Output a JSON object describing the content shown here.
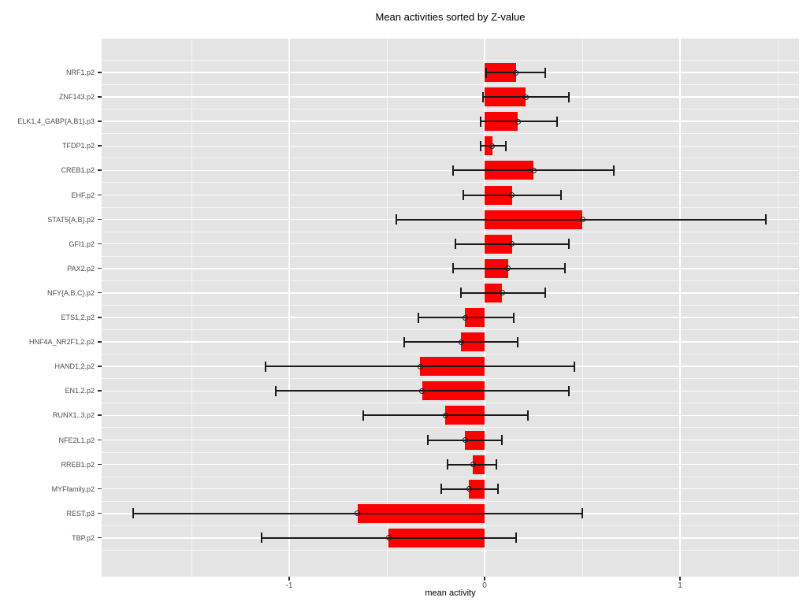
{
  "chart_data": {
    "type": "bar",
    "orientation": "horizontal",
    "title": "Mean activities sorted by Z-value",
    "xlabel": "mean activity",
    "ylabel": "",
    "xlim": [
      -1.96,
      1.61
    ],
    "x_ticks": [
      -1,
      0,
      1
    ],
    "x_tick_labels": [
      "-1",
      "0",
      "1"
    ],
    "x_minor_ticks": [
      -1.5,
      -0.5,
      0.5,
      1.5
    ],
    "grid": true,
    "legend": false,
    "bar_color": "#FF0000",
    "panel_background": "#E4E4E4",
    "error_bar_color": "#1a1a1a",
    "categories": [
      "NRF1.p2",
      "ZNF143.p2",
      "ELK1,4_GABP{A,B1}.p3",
      "TFDP1.p2",
      "CREB1.p2",
      "EHF.p2",
      "STAT5{A,B}.p2",
      "GFI1.p2",
      "PAX2.p2",
      "NFY{A,B,C}.p2",
      "ETS1,2.p2",
      "HNF4A_NR2F1,2.p2",
      "HAND1,2.p2",
      "EN1,2.p2",
      "RUNX1..3.p2",
      "NFE2L1.p2",
      "RREB1.p2",
      "MYFfamily.p2",
      "REST.p3",
      "TBP.p2"
    ],
    "rows": [
      {
        "label": "NRF1.p2",
        "mean": 0.16,
        "err_low": 0.01,
        "err_high": 0.31
      },
      {
        "label": "ZNF143.p2",
        "mean": 0.21,
        "err_low": -0.01,
        "err_high": 0.43
      },
      {
        "label": "ELK1,4_GABP{A,B1}.p3",
        "mean": 0.17,
        "err_low": -0.02,
        "err_high": 0.37
      },
      {
        "label": "TFDP1.p2",
        "mean": 0.04,
        "err_low": -0.02,
        "err_high": 0.11
      },
      {
        "label": "CREB1.p2",
        "mean": 0.25,
        "err_low": -0.16,
        "err_high": 0.66
      },
      {
        "label": "EHF.p2",
        "mean": 0.14,
        "err_low": -0.11,
        "err_high": 0.39
      },
      {
        "label": "STAT5{A,B}.p2",
        "mean": 0.5,
        "err_low": -0.45,
        "err_high": 1.44
      },
      {
        "label": "GFI1.p2",
        "mean": 0.14,
        "err_low": -0.15,
        "err_high": 0.43
      },
      {
        "label": "PAX2.p2",
        "mean": 0.12,
        "err_low": -0.16,
        "err_high": 0.41
      },
      {
        "label": "NFY{A,B,C}.p2",
        "mean": 0.09,
        "err_low": -0.12,
        "err_high": 0.31
      },
      {
        "label": "ETS1,2.p2",
        "mean": -0.1,
        "err_low": -0.34,
        "err_high": 0.15
      },
      {
        "label": "HNF4A_NR2F1,2.p2",
        "mean": -0.12,
        "err_low": -0.41,
        "err_high": 0.17
      },
      {
        "label": "HAND1,2.p2",
        "mean": -0.33,
        "err_low": -1.12,
        "err_high": 0.46
      },
      {
        "label": "EN1,2.p2",
        "mean": -0.32,
        "err_low": -1.07,
        "err_high": 0.43
      },
      {
        "label": "RUNX1..3.p2",
        "mean": -0.2,
        "err_low": -0.62,
        "err_high": 0.22
      },
      {
        "label": "NFE2L1.p2",
        "mean": -0.1,
        "err_low": -0.29,
        "err_high": 0.09
      },
      {
        "label": "RREB1.p2",
        "mean": -0.06,
        "err_low": -0.19,
        "err_high": 0.06
      },
      {
        "label": "MYFfamily.p2",
        "mean": -0.08,
        "err_low": -0.22,
        "err_high": 0.07
      },
      {
        "label": "REST.p3",
        "mean": -0.65,
        "err_low": -1.8,
        "err_high": 0.5
      },
      {
        "label": "TBP.p2",
        "mean": -0.49,
        "err_low": -1.14,
        "err_high": 0.16
      }
    ]
  }
}
